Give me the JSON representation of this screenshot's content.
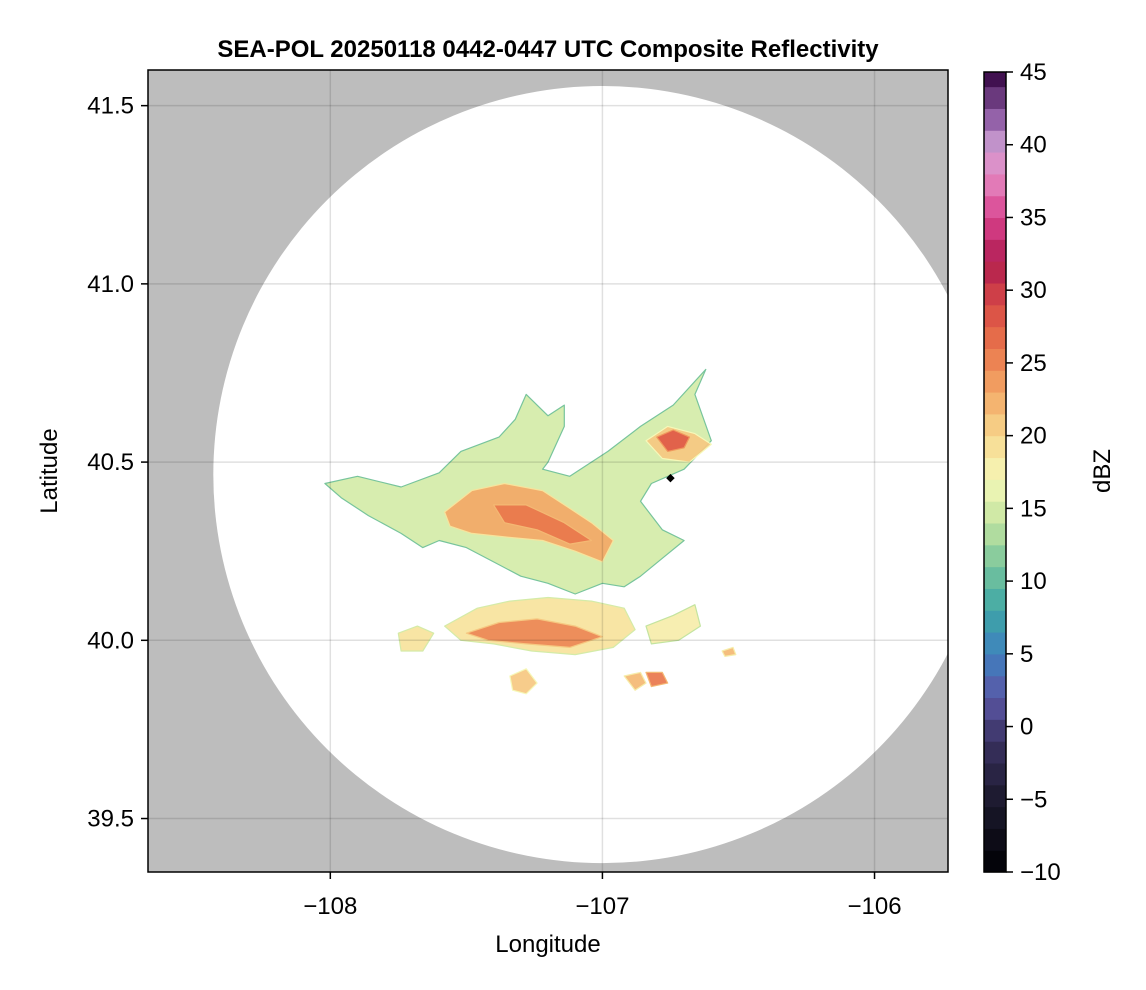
{
  "chart_data": {
    "type": "heatmap",
    "title": "SEA-POL 20250118 0442-0447 UTC Composite Reflectivity",
    "xlabel": "Longitude",
    "ylabel": "Latitude",
    "xlim": [
      -108.67,
      -105.73
    ],
    "ylim": [
      39.35,
      41.6
    ],
    "xticks": [
      -108,
      -107,
      -106
    ],
    "xtick_labels": [
      "−108",
      "−107",
      "−106"
    ],
    "yticks": [
      39.5,
      40.0,
      40.5,
      41.0,
      41.5
    ],
    "ytick_labels": [
      "39.5",
      "40.0",
      "40.5",
      "41.0",
      "41.5"
    ],
    "grid": true,
    "background_color": "#bdbdbd",
    "radar": {
      "center_lon": -107.0,
      "center_lat": 40.465,
      "range_lon": 1.43,
      "range_lat": 1.09,
      "site_marker_lon": -106.75,
      "site_marker_lat": 40.455
    },
    "colorbar": {
      "label": "dBZ",
      "min": -10,
      "max": 45,
      "step": 1.5,
      "ticks": [
        -10,
        -5,
        0,
        5,
        10,
        15,
        20,
        25,
        30,
        35,
        40,
        45
      ],
      "tick_labels": [
        "−10",
        "−5",
        "0",
        "5",
        "10",
        "15",
        "20",
        "25",
        "30",
        "35",
        "40",
        "45"
      ],
      "colormap": [
        {
          "value": -10,
          "color": "#000004"
        },
        {
          "value": -5,
          "color": "#1c1a2e"
        },
        {
          "value": -1,
          "color": "#3a3160"
        },
        {
          "value": 2,
          "color": "#5b57a6"
        },
        {
          "value": 5,
          "color": "#3f80bf"
        },
        {
          "value": 8,
          "color": "#3da7a6"
        },
        {
          "value": 11,
          "color": "#77c49c"
        },
        {
          "value": 14,
          "color": "#c3e4a0"
        },
        {
          "value": 17,
          "color": "#f6f8b8"
        },
        {
          "value": 20,
          "color": "#f7d88e"
        },
        {
          "value": 23,
          "color": "#f3a866"
        },
        {
          "value": 26,
          "color": "#e9774c"
        },
        {
          "value": 29,
          "color": "#d84a45"
        },
        {
          "value": 32,
          "color": "#b01c50"
        },
        {
          "value": 35,
          "color": "#d9428e"
        },
        {
          "value": 38,
          "color": "#e58cc4"
        },
        {
          "value": 40,
          "color": "#c99ad0"
        },
        {
          "value": 42,
          "color": "#8c5aa3"
        },
        {
          "value": 45,
          "color": "#3a0a48"
        }
      ]
    },
    "echo_regions": [
      {
        "name": "main-echo-mass",
        "dbz": 15,
        "points": [
          [
            -108.02,
            40.44
          ],
          [
            -107.9,
            40.46
          ],
          [
            -107.74,
            40.43
          ],
          [
            -107.6,
            40.47
          ],
          [
            -107.52,
            40.53
          ],
          [
            -107.38,
            40.57
          ],
          [
            -107.32,
            40.62
          ],
          [
            -107.28,
            40.69
          ],
          [
            -107.2,
            40.63
          ],
          [
            -107.14,
            40.66
          ],
          [
            -107.14,
            40.6
          ],
          [
            -107.2,
            40.5
          ],
          [
            -107.22,
            40.48
          ],
          [
            -107.12,
            40.46
          ],
          [
            -106.98,
            40.53
          ],
          [
            -106.86,
            40.6
          ],
          [
            -106.74,
            40.66
          ],
          [
            -106.62,
            40.76
          ],
          [
            -106.66,
            40.69
          ],
          [
            -106.6,
            40.56
          ],
          [
            -106.7,
            40.48
          ],
          [
            -106.82,
            40.44
          ],
          [
            -106.86,
            40.39
          ],
          [
            -106.78,
            40.31
          ],
          [
            -106.7,
            40.28
          ],
          [
            -106.78,
            40.23
          ],
          [
            -106.86,
            40.18
          ],
          [
            -106.92,
            40.15
          ],
          [
            -107.0,
            40.16
          ],
          [
            -107.1,
            40.13
          ],
          [
            -107.2,
            40.16
          ],
          [
            -107.3,
            40.18
          ],
          [
            -107.4,
            40.22
          ],
          [
            -107.5,
            40.26
          ],
          [
            -107.6,
            40.28
          ],
          [
            -107.66,
            40.26
          ],
          [
            -107.74,
            40.3
          ],
          [
            -107.86,
            40.35
          ],
          [
            -107.96,
            40.4
          ]
        ]
      },
      {
        "name": "core-echo",
        "dbz": 23,
        "points": [
          [
            -107.58,
            40.36
          ],
          [
            -107.48,
            40.42
          ],
          [
            -107.36,
            40.44
          ],
          [
            -107.22,
            40.42
          ],
          [
            -107.12,
            40.37
          ],
          [
            -107.04,
            40.33
          ],
          [
            -106.96,
            40.28
          ],
          [
            -107.0,
            40.22
          ],
          [
            -107.1,
            40.25
          ],
          [
            -107.22,
            40.28
          ],
          [
            -107.36,
            40.29
          ],
          [
            -107.48,
            40.3
          ],
          [
            -107.56,
            40.32
          ]
        ]
      },
      {
        "name": "intense-core",
        "dbz": 26,
        "points": [
          [
            -107.4,
            40.38
          ],
          [
            -107.28,
            40.38
          ],
          [
            -107.14,
            40.33
          ],
          [
            -107.04,
            40.28
          ],
          [
            -107.12,
            40.27
          ],
          [
            -107.24,
            40.31
          ],
          [
            -107.36,
            40.33
          ]
        ]
      },
      {
        "name": "north-east-cell",
        "dbz": 21,
        "points": [
          [
            -106.84,
            40.56
          ],
          [
            -106.76,
            40.6
          ],
          [
            -106.66,
            40.58
          ],
          [
            -106.6,
            40.55
          ],
          [
            -106.68,
            40.5
          ],
          [
            -106.78,
            40.51
          ]
        ]
      },
      {
        "name": "north-east-core",
        "dbz": 28,
        "points": [
          [
            -106.8,
            40.57
          ],
          [
            -106.74,
            40.59
          ],
          [
            -106.68,
            40.57
          ],
          [
            -106.7,
            40.54
          ],
          [
            -106.76,
            40.53
          ]
        ]
      },
      {
        "name": "south-band",
        "dbz": 19,
        "points": [
          [
            -107.58,
            40.04
          ],
          [
            -107.46,
            40.09
          ],
          [
            -107.34,
            40.11
          ],
          [
            -107.2,
            40.12
          ],
          [
            -107.04,
            40.11
          ],
          [
            -106.92,
            40.09
          ],
          [
            -106.88,
            40.03
          ],
          [
            -106.96,
            39.98
          ],
          [
            -107.1,
            39.96
          ],
          [
            -107.26,
            39.97
          ],
          [
            -107.4,
            39.99
          ],
          [
            -107.52,
            40.0
          ]
        ]
      },
      {
        "name": "south-band-core",
        "dbz": 25,
        "points": [
          [
            -107.5,
            40.02
          ],
          [
            -107.38,
            40.05
          ],
          [
            -107.24,
            40.06
          ],
          [
            -107.1,
            40.04
          ],
          [
            -107.0,
            40.01
          ],
          [
            -107.12,
            39.98
          ],
          [
            -107.28,
            39.99
          ],
          [
            -107.42,
            40.0
          ]
        ]
      },
      {
        "name": "south-east-band",
        "dbz": 18,
        "points": [
          [
            -106.84,
            40.04
          ],
          [
            -106.74,
            40.07
          ],
          [
            -106.66,
            40.1
          ],
          [
            -106.64,
            40.04
          ],
          [
            -106.72,
            40.0
          ],
          [
            -106.82,
            39.99
          ]
        ]
      },
      {
        "name": "west-cell",
        "dbz": 19,
        "points": [
          [
            -107.75,
            40.02
          ],
          [
            -107.68,
            40.04
          ],
          [
            -107.62,
            40.02
          ],
          [
            -107.66,
            39.97
          ],
          [
            -107.74,
            39.97
          ]
        ]
      },
      {
        "name": "south-cell-a",
        "dbz": 21,
        "points": [
          [
            -107.34,
            39.9
          ],
          [
            -107.28,
            39.92
          ],
          [
            -107.24,
            39.88
          ],
          [
            -107.28,
            39.85
          ],
          [
            -107.33,
            39.86
          ]
        ]
      },
      {
        "name": "south-cell-b",
        "dbz": 22,
        "points": [
          [
            -106.92,
            39.9
          ],
          [
            -106.86,
            39.91
          ],
          [
            -106.84,
            39.88
          ],
          [
            -106.88,
            39.86
          ]
        ]
      },
      {
        "name": "south-cell-c",
        "dbz": 26,
        "points": [
          [
            -106.84,
            39.91
          ],
          [
            -106.78,
            39.91
          ],
          [
            -106.76,
            39.88
          ],
          [
            -106.82,
            39.87
          ]
        ]
      },
      {
        "name": "east-speck",
        "dbz": 22,
        "points": [
          [
            -106.56,
            39.97
          ],
          [
            -106.52,
            39.98
          ],
          [
            -106.51,
            39.96
          ],
          [
            -106.55,
            39.955
          ]
        ]
      }
    ]
  }
}
